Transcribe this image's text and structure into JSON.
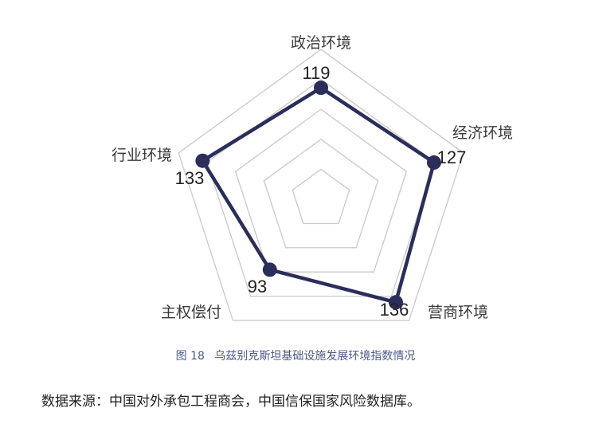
{
  "chart_data": {
    "type": "radar",
    "axes": [
      "政治环境",
      "经济环境",
      "营商环境",
      "主权偿付",
      "行业环境"
    ],
    "values": [
      119,
      127,
      136,
      93,
      133
    ],
    "range": [
      0,
      160
    ],
    "grid_levels": 5,
    "grid": true,
    "colors": {
      "series": "#2b2d5a",
      "grid": "#cccccc"
    }
  },
  "caption": {
    "figure_no": "图 18",
    "title": "乌兹别克斯坦基础设施发展环境指数情况"
  },
  "source": "数据来源：中国对外承包工程商会，中国信保国家风险数据库。"
}
